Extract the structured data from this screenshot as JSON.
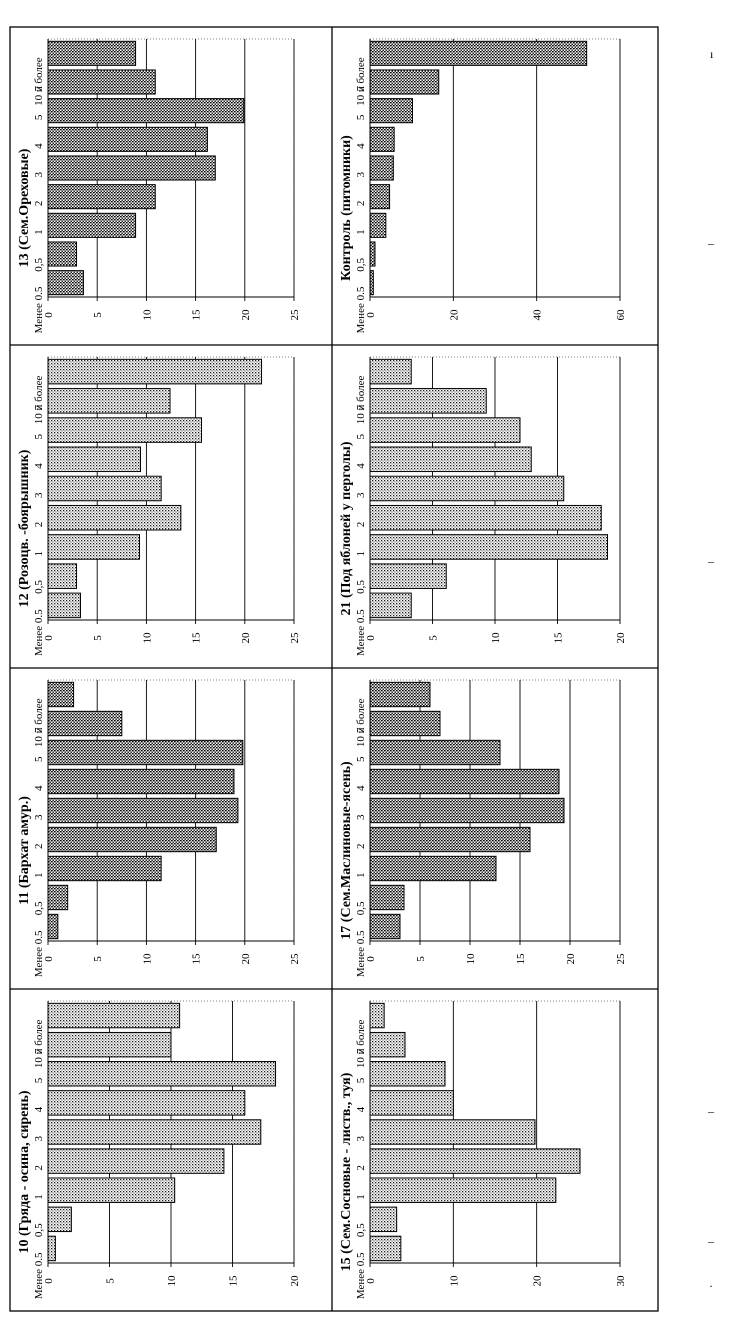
{
  "page": {
    "stray_marks": [
      "ı",
      "–",
      "–",
      "–",
      "–",
      "·"
    ]
  },
  "chart_data": [
    {
      "type": "bar",
      "title": "10 (Гряда - осина, сирень)",
      "categories": [
        "10 и более",
        "7",
        "5",
        "4",
        "3",
        "2",
        "1",
        "0,5",
        "Менее 0.5"
      ],
      "values": [
        10.7,
        10.0,
        18.5,
        16.0,
        17.3,
        14.3,
        10.3,
        1.9,
        0.6
      ],
      "ylim": [
        0,
        20
      ],
      "yticks": [
        "0",
        "5",
        "10",
        "15",
        "20"
      ],
      "grid": true
    },
    {
      "type": "bar",
      "title": "11 (Бархат амур.)",
      "categories": [
        "10 и более",
        "7",
        "5",
        "4",
        "3",
        "2",
        "1",
        "0,5",
        "Менее 0.5"
      ],
      "values": [
        2.6,
        7.5,
        19.8,
        18.9,
        19.3,
        17.1,
        11.5,
        2.0,
        1.0
      ],
      "ylim": [
        0,
        25
      ],
      "yticks": [
        "0",
        "5",
        "10",
        "15",
        "20",
        "25"
      ],
      "grid": true
    },
    {
      "type": "bar",
      "title": "12 (Розоцв. -боярышник)",
      "categories": [
        "10 и более",
        "7",
        "5",
        "4",
        "3",
        "2",
        "1",
        "0,5",
        "Менее 0.5"
      ],
      "values": [
        21.7,
        12.4,
        15.6,
        9.4,
        11.5,
        13.5,
        9.3,
        2.9,
        3.3
      ],
      "ylim": [
        0,
        25
      ],
      "yticks": [
        "0",
        "5",
        "10",
        "15",
        "20",
        "25"
      ],
      "grid": true
    },
    {
      "type": "bar",
      "title": "13 (Сем.Ореховые)",
      "categories": [
        "10 и более",
        "7",
        "5",
        "4",
        "3",
        "2",
        "1",
        "0,5",
        "Менее 0.5"
      ],
      "values": [
        8.9,
        10.9,
        19.9,
        16.2,
        17.0,
        10.9,
        8.9,
        2.9,
        3.6
      ],
      "ylim": [
        0,
        25
      ],
      "yticks": [
        "0",
        "5",
        "10",
        "15",
        "20",
        "25"
      ],
      "grid": true
    },
    {
      "type": "bar",
      "title": "15 (Сем.Сосновые - листв., туя)",
      "categories": [
        "10 и более",
        "7",
        "5",
        "4",
        "3",
        "2",
        "1",
        "0,5",
        "Менее 0.5"
      ],
      "values": [
        1.7,
        4.2,
        9.0,
        10.0,
        19.8,
        25.2,
        22.3,
        3.2,
        3.7
      ],
      "ylim": [
        0,
        30
      ],
      "yticks": [
        "0",
        "10",
        "20",
        "30"
      ],
      "grid": true
    },
    {
      "type": "bar",
      "title": "17 (Сем.Маслиновые-ясень)",
      "categories": [
        "10 и более",
        "7",
        "5",
        "4",
        "3",
        "2",
        "1",
        "0,5",
        "Менее 0.5"
      ],
      "values": [
        6.0,
        7.0,
        13.0,
        18.9,
        19.4,
        16.0,
        12.6,
        3.4,
        3.0
      ],
      "ylim": [
        0,
        25
      ],
      "yticks": [
        "0",
        "5",
        "10",
        "15",
        "20",
        "25"
      ],
      "grid": true
    },
    {
      "type": "bar",
      "title": "21 (Под яблоней у перголы)",
      "categories": [
        "10 и более",
        "7",
        "5",
        "4",
        "3",
        "2",
        "1",
        "0,5",
        "Менее 0.5"
      ],
      "values": [
        3.3,
        9.3,
        12.0,
        12.9,
        15.5,
        18.5,
        19.0,
        6.1,
        3.3
      ],
      "ylim": [
        0,
        20
      ],
      "yticks": [
        "0",
        "5",
        "10",
        "15",
        "20"
      ],
      "grid": true
    },
    {
      "type": "bar",
      "title": "Контроль (питомники)",
      "categories": [
        "10 и более",
        "7",
        "5",
        "4",
        "3",
        "2",
        "1",
        "0,5",
        "Менее 0.5"
      ],
      "values": [
        52.0,
        16.5,
        10.2,
        5.8,
        5.6,
        4.7,
        3.8,
        1.2,
        0.8
      ],
      "ylim": [
        0,
        60
      ],
      "yticks": [
        "0",
        "20",
        "40",
        "60"
      ],
      "grid": true
    }
  ]
}
